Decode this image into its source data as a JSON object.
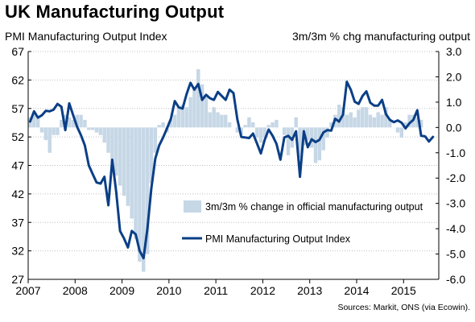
{
  "title": "UK Manufacturing Output",
  "axis_left_title": "PMI Manufacturing Output Index",
  "axis_right_title": "3m/3m % chg manufacturing output",
  "source": "Sources: Markit, ONS (via Ecowin).",
  "colors": {
    "bar": "#c6d7e6",
    "line": "#0b3f86",
    "grid": "#bfbfbf"
  },
  "chart_data": {
    "type": "bar+line",
    "x_ticks": [
      "2007",
      "2008",
      "2009",
      "2010",
      "2011",
      "2012",
      "2013",
      "2014",
      "2015"
    ],
    "x_range": [
      2007.0,
      2015.75
    ],
    "left_axis": {
      "range": [
        27,
        67
      ],
      "ticks": [
        "67",
        "62",
        "57",
        "52",
        "47",
        "42",
        "37",
        "32",
        "27"
      ]
    },
    "right_axis": {
      "range": [
        -6.0,
        3.0
      ],
      "ticks": [
        "3.0",
        "2.0",
        "1.0",
        "0.0",
        "-1.0",
        "-2.0",
        "-3.0",
        "-4.0",
        "-5.0",
        "-6.0"
      ]
    },
    "legend": [
      {
        "name": "3m/3m % change in official manufacturing output",
        "kind": "bar"
      },
      {
        "name": "PMI Manufacturing Output Index",
        "kind": "line"
      }
    ],
    "series": [
      {
        "name": "3m/3m % change in official manufacturing output",
        "kind": "bar",
        "axis": "right",
        "start": 2007.0,
        "step": 0.08333,
        "values": [
          0.4,
          0.6,
          0.4,
          -0.2,
          -0.5,
          -1.0,
          -0.3,
          -0.3,
          0.3,
          0.5,
          0.4,
          0.3,
          0.5,
          0.5,
          0.3,
          -0.1,
          -0.1,
          -0.2,
          -0.3,
          -0.6,
          -1.0,
          -1.4,
          -1.9,
          -2.3,
          -2.7,
          -3.1,
          -3.6,
          -4.4,
          -5.3,
          -5.7,
          -5.0,
          -2.2,
          -1.0,
          0.1,
          0.2,
          -0.2,
          0.3,
          0.5,
          0.8,
          0.9,
          0.8,
          1.2,
          1.6,
          2.3,
          1.7,
          1.2,
          0.6,
          0.8,
          0.6,
          0.5,
          0.5,
          0.2,
          0.0,
          -0.2,
          -0.3,
          0.1,
          0.4,
          0.2,
          -0.4,
          -0.6,
          -0.4,
          0.1,
          0.2,
          0.3,
          0.0,
          -0.3,
          -1.1,
          -0.8,
          0.4,
          -1.2,
          -0.7,
          -0.5,
          -0.8,
          -1.4,
          -1.3,
          -0.9,
          -0.4,
          0.2,
          0.5,
          0.9,
          0.8,
          0.5,
          0.6,
          0.4,
          0.7,
          0.8,
          0.8,
          0.5,
          0.4,
          0.6,
          0.5,
          0.8,
          0.3,
          0.0,
          -0.2,
          -0.4,
          0.2,
          0.5,
          0.5,
          0.4,
          0.3,
          0.0
        ]
      },
      {
        "name": "PMI Manufacturing Output Index",
        "kind": "line",
        "axis": "left",
        "start": 2007.0,
        "step": 0.08333,
        "values": [
          54.7,
          56.5,
          55.4,
          55.8,
          56.6,
          56.5,
          56.8,
          57.8,
          57.3,
          53.2,
          57.9,
          55.8,
          53.8,
          52.3,
          50.5,
          47.0,
          45.5,
          44.0,
          43.8,
          45.0,
          40.0,
          48.0,
          42.4,
          35.5,
          34.2,
          32.6,
          35.5,
          34.9,
          32.0,
          30.7,
          35.9,
          43.0,
          48.2,
          50.5,
          51.9,
          53.5,
          55.2,
          58.3,
          57.2,
          57.0,
          59.5,
          61.5,
          60.3,
          61.3,
          58.5,
          59.4,
          58.8,
          58.5,
          59.9,
          59.2,
          58.5,
          60.3,
          59.7,
          55.1,
          52.0,
          51.9,
          51.8,
          52.6,
          50.9,
          49.1,
          51.5,
          53.3,
          52.2,
          50.8,
          48.0,
          51.9,
          52.2,
          51.5,
          53.0,
          45.0,
          53.0,
          50.2,
          51.6,
          51.1,
          51.5,
          52.8,
          53.2,
          53.1,
          55.2,
          54.7,
          55.9,
          61.7,
          60.3,
          58.2,
          57.8,
          59.2,
          60.0,
          58.0,
          57.5,
          57.5,
          58.5,
          56.0,
          55.0,
          54.6,
          54.9,
          54.5,
          53.5,
          54.4,
          55.0,
          56.7,
          52.2,
          52.1,
          51.2,
          52.0
        ]
      }
    ]
  }
}
